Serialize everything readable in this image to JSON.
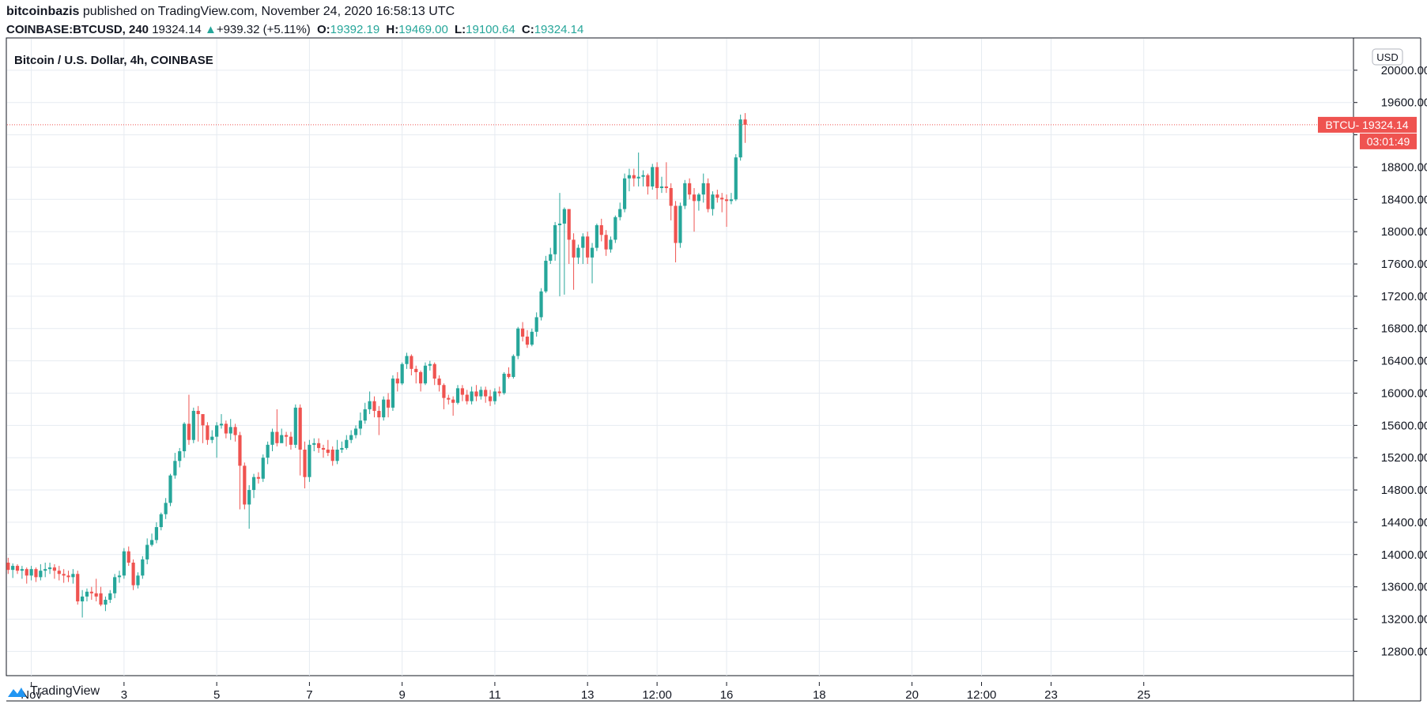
{
  "header": {
    "author": "bitcoinbazis",
    "published": "published on TradingView.com, November 24, 2020 16:58:13 UTC",
    "symbol": "COINBASE:BTCUSD, 240",
    "last": "19324.14",
    "change": "+939.32 (+5.11%)",
    "o_label": "O:",
    "o_value": "19392.19",
    "h_label": "H:",
    "h_value": "19469.00",
    "l_label": "L:",
    "l_value": "19100.64",
    "c_label": "C:",
    "c_value": "19324.14"
  },
  "footer": {
    "brand": "TradingView"
  },
  "colors": {
    "up": "#26a69a",
    "down": "#ef5350",
    "grid": "#e6ebf1",
    "axis": "#131722"
  },
  "chart_data": {
    "type": "candlestick",
    "title": "Bitcoin / U.S. Dollar, 4h, COINBASE",
    "currency": "USD",
    "ylim": [
      12500,
      20400
    ],
    "y_ticks": [
      12800,
      13200,
      13600,
      14000,
      14400,
      14800,
      15200,
      15600,
      16000,
      16400,
      16800,
      17200,
      17600,
      18000,
      18400,
      18800,
      19200,
      19600,
      20000
    ],
    "y_tick_labels": [
      "12800.00",
      "13200.00",
      "13600.00",
      "14000.00",
      "14400.00",
      "14800.00",
      "15200.00",
      "15600.00",
      "16000.00",
      "16400.00",
      "16800.00",
      "17200.00",
      "17600.00",
      "18000.00",
      "18400.00",
      "18800.00",
      "",
      "19600.00",
      "20000.00"
    ],
    "x_ticks": [
      {
        "label": "Nov",
        "bar": 5
      },
      {
        "label": "3",
        "bar": 25
      },
      {
        "label": "5",
        "bar": 45
      },
      {
        "label": "7",
        "bar": 65
      },
      {
        "label": "9",
        "bar": 85
      },
      {
        "label": "11",
        "bar": 105
      },
      {
        "label": "13",
        "bar": 125
      },
      {
        "label": "12:00",
        "bar": 140
      },
      {
        "label": "16",
        "bar": 155
      },
      {
        "label": "18",
        "bar": 175
      },
      {
        "label": "20",
        "bar": 195
      },
      {
        "label": "12:00",
        "bar": 210
      },
      {
        "label": "23",
        "bar": 225
      },
      {
        "label": "25",
        "bar": 245
      }
    ],
    "last_price_label": "BTCU- 19324.14",
    "last_price": 19324.14,
    "countdown": "03:01:49",
    "candles": [
      [
        13900,
        13810,
        13960,
        13760
      ],
      [
        13810,
        13860,
        13890,
        13710
      ],
      [
        13860,
        13800,
        13880,
        13760
      ],
      [
        13800,
        13820,
        13860,
        13700
      ],
      [
        13820,
        13740,
        13840,
        13640
      ],
      [
        13740,
        13820,
        13860,
        13680
      ],
      [
        13820,
        13720,
        13840,
        13660
      ],
      [
        13720,
        13800,
        13880,
        13680
      ],
      [
        13800,
        13820,
        13900,
        13720
      ],
      [
        13820,
        13840,
        13900,
        13760
      ],
      [
        13840,
        13800,
        13880,
        13700
      ],
      [
        13800,
        13760,
        13860,
        13680
      ],
      [
        13760,
        13740,
        13820,
        13650
      ],
      [
        13740,
        13720,
        13800,
        13660
      ],
      [
        13720,
        13760,
        13820,
        13640
      ],
      [
        13760,
        13420,
        13800,
        13380
      ],
      [
        13420,
        13480,
        13560,
        13220
      ],
      [
        13480,
        13540,
        13580,
        13420
      ],
      [
        13540,
        13520,
        13600,
        13440
      ],
      [
        13520,
        13480,
        13700,
        13420
      ],
      [
        13520,
        13380,
        13600,
        13360
      ],
      [
        13380,
        13440,
        13480,
        13300
      ],
      [
        13440,
        13520,
        13560,
        13400
      ],
      [
        13520,
        13720,
        13760,
        13460
      ],
      [
        13720,
        13740,
        13800,
        13650
      ],
      [
        13740,
        14040,
        14080,
        13700
      ],
      [
        14040,
        13900,
        14100,
        13860
      ],
      [
        13900,
        13620,
        13940,
        13560
      ],
      [
        13620,
        13740,
        13780,
        13580
      ],
      [
        13740,
        13940,
        13980,
        13700
      ],
      [
        13940,
        14120,
        14200,
        13880
      ],
      [
        14120,
        14180,
        14260,
        14100
      ],
      [
        14180,
        14340,
        14400,
        14140
      ],
      [
        14340,
        14500,
        14520,
        14300
      ],
      [
        14500,
        14640,
        14700,
        14440
      ],
      [
        14640,
        14980,
        15000,
        14600
      ],
      [
        14980,
        15160,
        15260,
        14940
      ],
      [
        15160,
        15280,
        15320,
        15080
      ],
      [
        15280,
        15620,
        15640,
        15200
      ],
      [
        15620,
        15420,
        15980,
        15360
      ],
      [
        15420,
        15780,
        15820,
        15380
      ],
      [
        15780,
        15740,
        15840,
        15400
      ],
      [
        15740,
        15600,
        15700,
        15380
      ],
      [
        15600,
        15420,
        15640,
        15360
      ],
      [
        15420,
        15460,
        15540,
        15380
      ],
      [
        15460,
        15600,
        15640,
        15200
      ],
      [
        15600,
        15620,
        15740,
        15560
      ],
      [
        15620,
        15500,
        15660,
        15440
      ],
      [
        15500,
        15580,
        15680,
        15420
      ],
      [
        15580,
        15480,
        15620,
        15400
      ],
      [
        15480,
        15100,
        15520,
        14560
      ],
      [
        15100,
        14620,
        15140,
        14560
      ],
      [
        14620,
        14800,
        14860,
        14320
      ],
      [
        14800,
        14960,
        15000,
        14700
      ],
      [
        14960,
        14940,
        15020,
        14880
      ],
      [
        14940,
        15200,
        15240,
        14900
      ],
      [
        15200,
        15360,
        15400,
        15120
      ],
      [
        15360,
        15520,
        15560,
        15280
      ],
      [
        15520,
        15380,
        15800,
        15340
      ],
      [
        15380,
        15480,
        15560,
        15420
      ],
      [
        15480,
        15460,
        15520,
        15340
      ],
      [
        15460,
        15360,
        15520,
        15300
      ],
      [
        15360,
        15820,
        15860,
        15320
      ],
      [
        15820,
        15300,
        15860,
        14980
      ],
      [
        15300,
        14960,
        15400,
        14820
      ],
      [
        14960,
        15360,
        15420,
        14900
      ],
      [
        15360,
        15380,
        15440,
        15280
      ],
      [
        15380,
        15320,
        15440,
        15260
      ],
      [
        15320,
        15300,
        15360,
        15200
      ],
      [
        15300,
        15260,
        15420,
        15220
      ],
      [
        15300,
        15160,
        15340,
        15100
      ],
      [
        15160,
        15300,
        15420,
        15120
      ],
      [
        15300,
        15320,
        15400,
        15260
      ],
      [
        15320,
        15420,
        15480,
        15300
      ],
      [
        15420,
        15480,
        15540,
        15380
      ],
      [
        15480,
        15560,
        15600,
        15440
      ],
      [
        15560,
        15660,
        15760,
        15480
      ],
      [
        15660,
        15800,
        15880,
        15620
      ],
      [
        15800,
        15900,
        16020,
        15740
      ],
      [
        15900,
        15780,
        15960,
        15700
      ],
      [
        15780,
        15700,
        15840,
        15480
      ],
      [
        15700,
        15920,
        15960,
        15660
      ],
      [
        15920,
        15820,
        16000,
        15700
      ],
      [
        15820,
        16180,
        16220,
        15780
      ],
      [
        16180,
        16120,
        16260,
        16020
      ],
      [
        16120,
        16360,
        16380,
        16100
      ],
      [
        16360,
        16460,
        16500,
        16300
      ],
      [
        16460,
        16300,
        16480,
        16220
      ],
      [
        16300,
        16260,
        16340,
        16120
      ],
      [
        16260,
        16120,
        16280,
        16020
      ],
      [
        16120,
        16340,
        16380,
        16100
      ],
      [
        16340,
        16360,
        16400,
        16280
      ],
      [
        16360,
        16180,
        16380,
        16100
      ],
      [
        16180,
        16100,
        16220,
        16020
      ],
      [
        16100,
        15940,
        16120,
        15800
      ],
      [
        15940,
        15920,
        15980,
        15860
      ],
      [
        15920,
        15880,
        15960,
        15720
      ],
      [
        15880,
        16060,
        16100,
        15860
      ],
      [
        16060,
        15980,
        16100,
        15900
      ],
      [
        15980,
        15900,
        16040,
        15860
      ],
      [
        15900,
        16020,
        16080,
        15860
      ],
      [
        16020,
        15960,
        16100,
        15900
      ],
      [
        15960,
        16040,
        16080,
        15920
      ],
      [
        16040,
        15960,
        16080,
        15880
      ],
      [
        15960,
        15900,
        16040,
        15840
      ],
      [
        15900,
        16020,
        16060,
        15860
      ],
      [
        16020,
        16000,
        16080,
        15960
      ],
      [
        16000,
        16240,
        16260,
        15980
      ],
      [
        16240,
        16200,
        16320,
        16180
      ],
      [
        16200,
        16460,
        16480,
        16180
      ],
      [
        16460,
        16800,
        16820,
        16420
      ],
      [
        16800,
        16700,
        16880,
        16640
      ],
      [
        16700,
        16600,
        16780,
        16560
      ],
      [
        16600,
        16760,
        16800,
        16580
      ],
      [
        16760,
        16940,
        17000,
        16700
      ],
      [
        16940,
        17260,
        17300,
        16900
      ],
      [
        17260,
        17640,
        17700,
        17240
      ],
      [
        17640,
        17720,
        17800,
        17600
      ],
      [
        17720,
        18080,
        18120,
        17640
      ],
      [
        18080,
        18100,
        18480,
        17200
      ],
      [
        18100,
        18280,
        18300,
        17220
      ],
      [
        18280,
        17900,
        18280,
        17600
      ],
      [
        17900,
        17680,
        17980,
        17280
      ],
      [
        17680,
        17800,
        17840,
        17600
      ],
      [
        17800,
        17940,
        17980,
        17600
      ],
      [
        17940,
        17680,
        18000,
        17600
      ],
      [
        17680,
        17800,
        17860,
        17360
      ],
      [
        17800,
        18080,
        18100,
        17760
      ],
      [
        18080,
        17960,
        18160,
        17880
      ],
      [
        17960,
        17780,
        18020,
        17700
      ],
      [
        17780,
        17900,
        17940,
        17740
      ],
      [
        17900,
        18180,
        18200,
        17860
      ],
      [
        18180,
        18280,
        18360,
        18140
      ],
      [
        18280,
        18660,
        18720,
        18240
      ],
      [
        18660,
        18700,
        18780,
        18500
      ],
      [
        18700,
        18660,
        18780,
        18560
      ],
      [
        18660,
        18680,
        18980,
        18560
      ],
      [
        18680,
        18700,
        18760,
        18560
      ],
      [
        18700,
        18560,
        18720,
        18460
      ],
      [
        18560,
        18800,
        18840,
        18520
      ],
      [
        18800,
        18540,
        18860,
        18400
      ],
      [
        18540,
        18560,
        18680,
        18480
      ],
      [
        18560,
        18540,
        18860,
        18480
      ],
      [
        18540,
        18320,
        18600,
        18140
      ],
      [
        18320,
        17860,
        18380,
        17620
      ],
      [
        17860,
        18320,
        18360,
        17800
      ],
      [
        18320,
        18600,
        18640,
        18280
      ],
      [
        18600,
        18460,
        18660,
        18400
      ],
      [
        18460,
        18380,
        18540,
        18000
      ],
      [
        18380,
        18460,
        18480,
        18260
      ],
      [
        18460,
        18600,
        18720,
        18360
      ],
      [
        18600,
        18280,
        18660,
        18240
      ],
      [
        18280,
        18460,
        18500,
        18200
      ],
      [
        18460,
        18420,
        18520,
        18360
      ],
      [
        18420,
        18400,
        18480,
        18240
      ],
      [
        18400,
        18380,
        18460,
        18060
      ],
      [
        18380,
        18400,
        18480,
        18340
      ],
      [
        18400,
        18920,
        18960,
        18380
      ],
      [
        18920,
        19390,
        19450,
        18880
      ],
      [
        19390,
        19324,
        19469,
        19100
      ]
    ]
  }
}
